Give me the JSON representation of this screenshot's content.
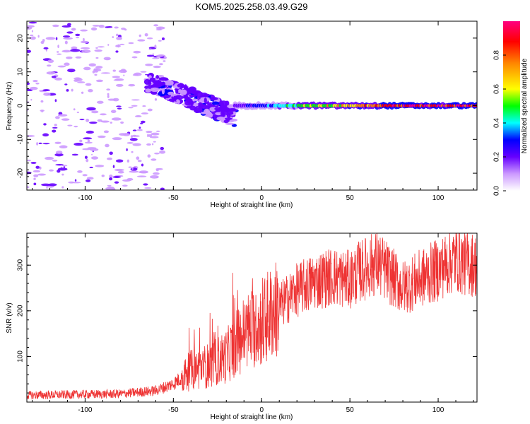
{
  "title": "KOM5.2025.258.03.49.G29",
  "chart_data": [
    {
      "type": "heatmap",
      "xlabel": "Height of straight line (km)",
      "ylabel": "Frequency (Hz)",
      "xlim": [
        -133,
        122
      ],
      "ylim": [
        -25,
        25
      ],
      "xticks": [
        -100,
        -50,
        0,
        50,
        100
      ],
      "yticks": [
        20,
        10,
        0,
        -10,
        -20
      ],
      "colorbar": {
        "label": "Normalized spectral amplitude",
        "range": [
          0,
          1
        ],
        "ticks": [
          0.0,
          0.2,
          0.4,
          0.6,
          0.8
        ],
        "colors": [
          "#ffffff",
          "#cc99ff",
          "#6600ff",
          "#0000ff",
          "#00ffff",
          "#00ff00",
          "#ffff00",
          "#ff8800",
          "#ff0000",
          "#ff0080"
        ]
      },
      "features": {
        "noise_region_x": [
          -133,
          -55
        ],
        "chirp_x": [
          -65,
          -15
        ],
        "chirp_freq": [
          7,
          -3
        ],
        "line_x": [
          -15,
          122
        ],
        "line_freq": 0
      }
    },
    {
      "type": "line",
      "xlabel": "Height of straight line (km)",
      "ylabel": "SNR (v/v)",
      "xlim": [
        -133,
        122
      ],
      "ylim": [
        0,
        370
      ],
      "xticks": [
        -100,
        -50,
        0,
        50,
        100
      ],
      "yticks": [
        100,
        200,
        300
      ],
      "color": "#ee3333",
      "trend": {
        "x": [
          -133,
          -80,
          -60,
          -50,
          -40,
          -30,
          -20,
          -10,
          0,
          10,
          20,
          30,
          40,
          50,
          55,
          60,
          65,
          70,
          80,
          90,
          100,
          110,
          115,
          122
        ],
        "y": [
          15,
          18,
          25,
          40,
          70,
          80,
          100,
          150,
          175,
          210,
          245,
          265,
          275,
          268,
          285,
          295,
          305,
          290,
          250,
          270,
          290,
          315,
          305,
          300
        ]
      }
    }
  ]
}
